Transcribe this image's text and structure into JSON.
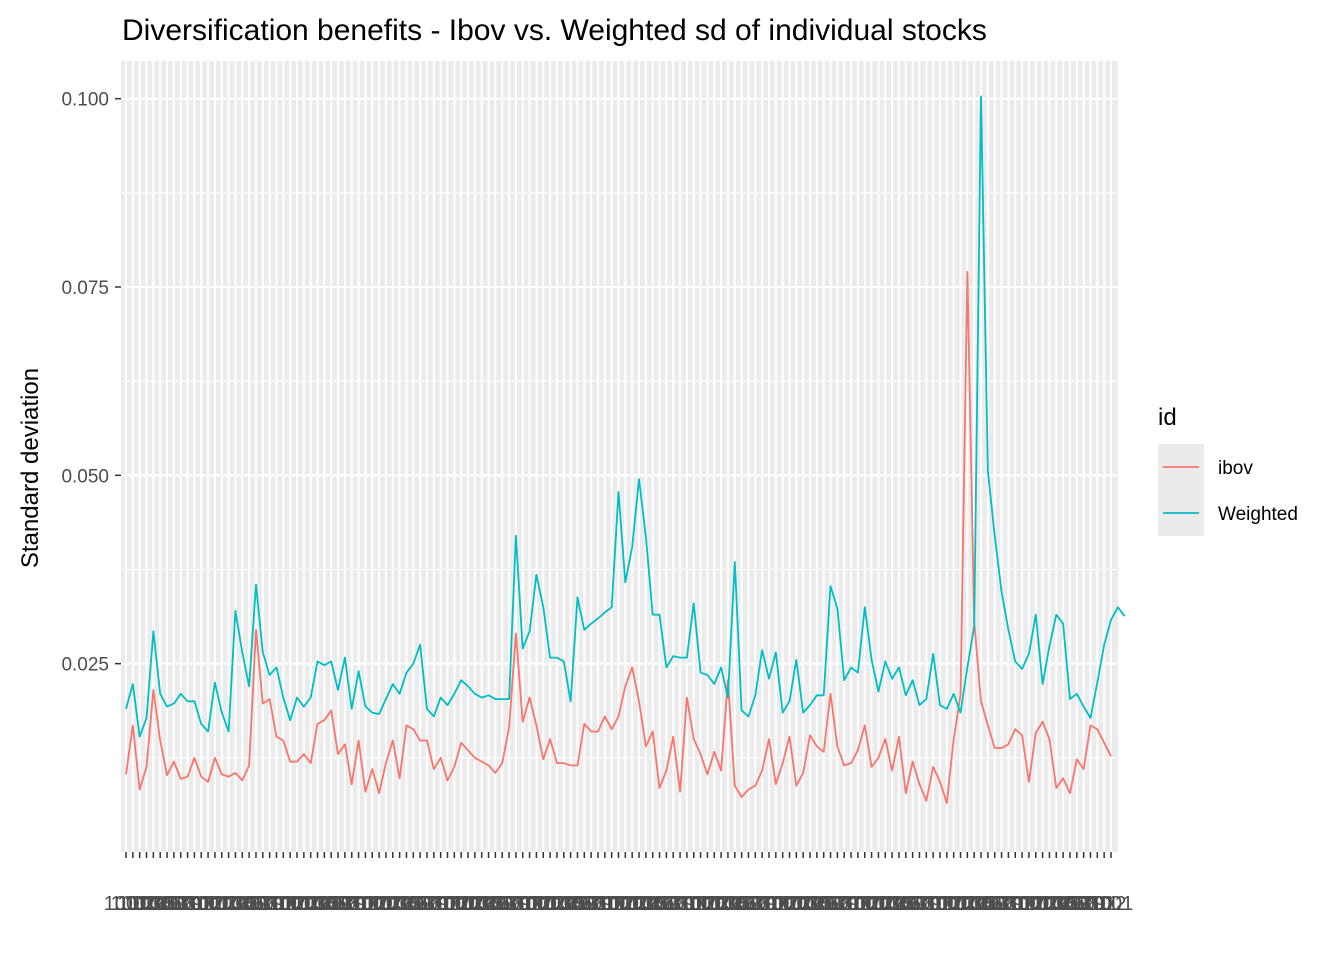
{
  "chart_data": {
    "type": "line",
    "title": "Diversification  benefits - Ibov vs. Weighted sd of individual stocks",
    "xlabel": "",
    "ylabel": "Standard deviation",
    "ylim": [
      0.0,
      0.105
    ],
    "yticks": [
      0.025,
      0.05,
      0.075,
      0.1
    ],
    "ytick_labels": [
      "0.025",
      "0.050",
      "0.075",
      "0.100"
    ],
    "x_tick_label_pattern": [
      "1001",
      "1002",
      "1003",
      "1004",
      "1005",
      "1006",
      "1007",
      "1008",
      "1009",
      "1010",
      "1011",
      "1012"
    ],
    "grid": true,
    "legend": {
      "title": "id",
      "position": "right",
      "entries": [
        "ibov",
        "Weighted"
      ]
    },
    "colors": {
      "ibov": "#F8766D",
      "Weighted": "#00BFC4",
      "panel_background": "#EBEBEB",
      "grid": "#FFFFFF"
    },
    "series": [
      {
        "name": "ibov",
        "values": [
          0.0103,
          0.0168,
          0.0083,
          0.0113,
          0.0215,
          0.0148,
          0.0102,
          0.012,
          0.0097,
          0.01,
          0.0125,
          0.01,
          0.0093,
          0.0125,
          0.0103,
          0.01,
          0.0105,
          0.0095,
          0.0115,
          0.0295,
          0.0197,
          0.0203,
          0.0153,
          0.0148,
          0.012,
          0.012,
          0.013,
          0.0118,
          0.017,
          0.0175,
          0.0188,
          0.013,
          0.0143,
          0.009,
          0.0148,
          0.008,
          0.011,
          0.0078,
          0.0118,
          0.0148,
          0.0098,
          0.0168,
          0.0163,
          0.0148,
          0.0148,
          0.011,
          0.0125,
          0.0095,
          0.0113,
          0.0145,
          0.0135,
          0.0125,
          0.012,
          0.0115,
          0.0105,
          0.0118,
          0.0165,
          0.029,
          0.0173,
          0.0205,
          0.0168,
          0.0123,
          0.015,
          0.0118,
          0.0118,
          0.0115,
          0.0115,
          0.017,
          0.016,
          0.016,
          0.018,
          0.0163,
          0.018,
          0.022,
          0.0245,
          0.02,
          0.014,
          0.016,
          0.0085,
          0.0108,
          0.0153,
          0.008,
          0.0205,
          0.015,
          0.013,
          0.0103,
          0.0133,
          0.0108,
          0.0228,
          0.0088,
          0.0073,
          0.0083,
          0.0088,
          0.0108,
          0.015,
          0.009,
          0.0118,
          0.0153,
          0.0088,
          0.0105,
          0.0155,
          0.014,
          0.0133,
          0.021,
          0.014,
          0.0115,
          0.0118,
          0.0135,
          0.0168,
          0.0113,
          0.0125,
          0.015,
          0.0108,
          0.0153,
          0.0078,
          0.012,
          0.009,
          0.0068,
          0.0113,
          0.0093,
          0.0065,
          0.015,
          0.0208,
          0.077,
          0.0305,
          0.02,
          0.0168,
          0.0138,
          0.0138,
          0.0143,
          0.0163,
          0.0155,
          0.0093,
          0.0158,
          0.0173,
          0.015,
          0.0085,
          0.0098,
          0.0078,
          0.0123,
          0.011,
          0.0168,
          0.0163,
          0.0145,
          0.0127
        ]
      },
      {
        "name": "Weighted",
        "values": [
          0.019,
          0.0223,
          0.0153,
          0.0178,
          0.0293,
          0.021,
          0.0193,
          0.0197,
          0.021,
          0.02,
          0.02,
          0.017,
          0.016,
          0.0225,
          0.0185,
          0.016,
          0.032,
          0.0265,
          0.022,
          0.0355,
          0.0265,
          0.0235,
          0.0245,
          0.0205,
          0.0175,
          0.0205,
          0.0193,
          0.0205,
          0.0253,
          0.0248,
          0.0253,
          0.0215,
          0.0258,
          0.019,
          0.024,
          0.0193,
          0.0185,
          0.0183,
          0.0203,
          0.0223,
          0.021,
          0.0238,
          0.025,
          0.0275,
          0.019,
          0.018,
          0.0205,
          0.0195,
          0.021,
          0.0228,
          0.022,
          0.021,
          0.0205,
          0.0208,
          0.0203,
          0.0203,
          0.0203,
          0.042,
          0.027,
          0.0293,
          0.0368,
          0.0325,
          0.0258,
          0.0258,
          0.0253,
          0.02,
          0.0338,
          0.0295,
          0.0303,
          0.031,
          0.0318,
          0.0325,
          0.0478,
          0.0358,
          0.0405,
          0.0495,
          0.0418,
          0.0315,
          0.0315,
          0.0245,
          0.026,
          0.0258,
          0.0258,
          0.033,
          0.0238,
          0.0235,
          0.0223,
          0.0245,
          0.0205,
          0.0385,
          0.0188,
          0.018,
          0.0208,
          0.0268,
          0.023,
          0.0265,
          0.0185,
          0.02,
          0.0255,
          0.0185,
          0.0195,
          0.0208,
          0.0208,
          0.0353,
          0.0323,
          0.0228,
          0.0245,
          0.0238,
          0.0325,
          0.0255,
          0.0213,
          0.0253,
          0.023,
          0.0245,
          0.0208,
          0.0228,
          0.0195,
          0.0203,
          0.0263,
          0.0195,
          0.019,
          0.021,
          0.0185,
          0.0245,
          0.03,
          0.1003,
          0.0505,
          0.042,
          0.0345,
          0.0295,
          0.0253,
          0.0243,
          0.0263,
          0.0315,
          0.0223,
          0.0273,
          0.0315,
          0.0303,
          0.0203,
          0.021,
          0.0193,
          0.0178,
          0.0225,
          0.0275,
          0.0308,
          0.0325,
          0.0313
        ]
      }
    ]
  }
}
